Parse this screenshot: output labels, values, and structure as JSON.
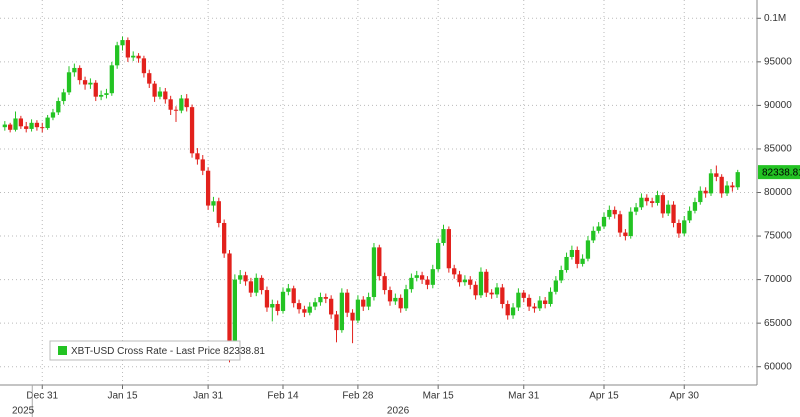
{
  "chart_data": {
    "type": "candlestick",
    "series": [
      {
        "name": "XBT-USD Cross Rate - Last Price",
        "up_color": "#23c323",
        "down_color": "#e2211c",
        "x": [
          -7,
          -6,
          -5,
          -4,
          -3,
          -2,
          -1,
          0,
          1,
          2,
          3,
          4,
          5,
          6,
          7,
          8,
          9,
          10,
          11,
          12,
          13,
          14,
          15,
          16,
          17,
          18,
          19,
          20,
          21,
          22,
          23,
          24,
          25,
          26,
          27,
          28,
          29,
          30,
          31,
          32,
          33,
          34,
          35,
          36,
          37,
          38,
          39,
          40,
          41,
          42,
          43,
          44,
          45,
          46,
          47,
          48,
          49,
          50,
          51,
          52,
          53,
          54,
          55,
          56,
          57,
          58,
          59,
          60,
          61,
          62,
          63,
          64,
          65,
          66,
          67,
          68,
          69,
          70,
          71,
          72,
          73,
          74,
          75,
          76,
          77,
          78,
          79,
          80,
          81,
          82,
          83,
          84,
          85,
          86,
          87,
          88,
          89,
          90,
          91,
          92,
          93,
          94,
          95,
          96,
          97,
          98,
          99,
          100,
          101,
          102,
          103,
          104,
          105,
          106,
          107,
          108,
          109,
          110,
          111,
          112,
          113,
          114,
          115,
          116,
          117,
          118,
          119,
          120,
          121,
          122,
          123,
          124,
          125,
          126,
          127,
          128,
          129,
          130
        ],
        "candles": [
          [
            87500,
            88200,
            87100,
            87800
          ],
          [
            87800,
            88000,
            86900,
            87200
          ],
          [
            87200,
            89300,
            87000,
            88500
          ],
          [
            88500,
            88800,
            87300,
            87600
          ],
          [
            87600,
            88100,
            86900,
            87300
          ],
          [
            87300,
            88400,
            87000,
            88000
          ],
          [
            88000,
            88300,
            87100,
            87500
          ],
          [
            87500,
            88000,
            86900,
            87400
          ],
          [
            87400,
            88900,
            87200,
            88600
          ],
          [
            88600,
            89600,
            88300,
            89200
          ],
          [
            89200,
            90900,
            88900,
            90500
          ],
          [
            90500,
            91900,
            90100,
            91500
          ],
          [
            91500,
            94500,
            91200,
            93800
          ],
          [
            93800,
            94800,
            93300,
            94300
          ],
          [
            94300,
            94600,
            92400,
            92900
          ],
          [
            92900,
            93300,
            91800,
            92400
          ],
          [
            92400,
            93100,
            91900,
            92600
          ],
          [
            92600,
            92900,
            90500,
            91000
          ],
          [
            91000,
            91700,
            90600,
            91200
          ],
          [
            91200,
            91900,
            90800,
            91400
          ],
          [
            91400,
            95000,
            91100,
            94600
          ],
          [
            94600,
            97300,
            94200,
            96900
          ],
          [
            96900,
            97900,
            96300,
            97500
          ],
          [
            97500,
            97800,
            95000,
            95500
          ],
          [
            95500,
            96200,
            95100,
            95700
          ],
          [
            95700,
            96000,
            94900,
            95400
          ],
          [
            95400,
            95700,
            93200,
            93700
          ],
          [
            93700,
            94100,
            92000,
            92500
          ],
          [
            92500,
            92800,
            90400,
            91000
          ],
          [
            91000,
            92100,
            90700,
            91600
          ],
          [
            91600,
            92000,
            90200,
            90700
          ],
          [
            90700,
            91100,
            88900,
            89500
          ],
          [
            89500,
            89900,
            88100,
            89400
          ],
          [
            89400,
            91200,
            89100,
            90800
          ],
          [
            90800,
            91300,
            89300,
            89800
          ],
          [
            89800,
            90100,
            84000,
            84500
          ],
          [
            84500,
            85100,
            83200,
            83800
          ],
          [
            83800,
            84300,
            82000,
            82500
          ],
          [
            82500,
            82900,
            78000,
            78500
          ],
          [
            78500,
            79500,
            77800,
            79000
          ],
          [
            79000,
            79400,
            76000,
            76500
          ],
          [
            76500,
            76900,
            72500,
            73000
          ],
          [
            73000,
            73400,
            60500,
            62500
          ],
          [
            62500,
            70600,
            62200,
            70000
          ],
          [
            70000,
            71100,
            69500,
            70500
          ],
          [
            70500,
            70900,
            69300,
            69800
          ],
          [
            69800,
            70200,
            68000,
            68500
          ],
          [
            68500,
            70700,
            68100,
            70200
          ],
          [
            70200,
            70500,
            68300,
            68800
          ],
          [
            68800,
            69200,
            66300,
            66800
          ],
          [
            66800,
            67700,
            65200,
            67200
          ],
          [
            67200,
            67600,
            65900,
            66400
          ],
          [
            66400,
            69100,
            66100,
            68600
          ],
          [
            68600,
            69500,
            68200,
            69000
          ],
          [
            69000,
            69300,
            66800,
            67300
          ],
          [
            67300,
            67700,
            66100,
            66600
          ],
          [
            66600,
            67000,
            65700,
            66200
          ],
          [
            66200,
            67400,
            65900,
            66900
          ],
          [
            66900,
            67900,
            66500,
            67400
          ],
          [
            67400,
            68500,
            67000,
            68000
          ],
          [
            68000,
            68400,
            67300,
            67800
          ],
          [
            67800,
            68200,
            65500,
            66000
          ],
          [
            66000,
            66400,
            62800,
            64200
          ],
          [
            64200,
            69000,
            63900,
            68500
          ],
          [
            68500,
            68900,
            65700,
            66200
          ],
          [
            66200,
            66600,
            62700,
            65300
          ],
          [
            65300,
            68200,
            65000,
            67700
          ],
          [
            67700,
            68100,
            66400,
            66900
          ],
          [
            66900,
            68500,
            66500,
            68000
          ],
          [
            68000,
            74200,
            67600,
            73700
          ],
          [
            73700,
            74000,
            69900,
            70400
          ],
          [
            70400,
            70800,
            68300,
            68800
          ],
          [
            68800,
            69200,
            67000,
            67500
          ],
          [
            67500,
            68400,
            67100,
            67900
          ],
          [
            67900,
            68300,
            66200,
            66700
          ],
          [
            66700,
            69400,
            66400,
            68900
          ],
          [
            68900,
            70700,
            68500,
            70200
          ],
          [
            70200,
            71000,
            69800,
            70500
          ],
          [
            70500,
            70900,
            69500,
            70000
          ],
          [
            70000,
            70400,
            68900,
            69400
          ],
          [
            69400,
            71700,
            69000,
            71200
          ],
          [
            71200,
            74700,
            70900,
            74200
          ],
          [
            74200,
            76300,
            73900,
            75800
          ],
          [
            75800,
            76100,
            70800,
            71300
          ],
          [
            71300,
            71700,
            70100,
            70600
          ],
          [
            70600,
            71000,
            69200,
            69700
          ],
          [
            69700,
            70500,
            69300,
            70000
          ],
          [
            70000,
            70400,
            68900,
            69400
          ],
          [
            69400,
            69800,
            67700,
            68200
          ],
          [
            68200,
            71400,
            67900,
            70900
          ],
          [
            70900,
            71200,
            68000,
            68500
          ],
          [
            68500,
            68900,
            67800,
            68300
          ],
          [
            68300,
            69600,
            67900,
            69100
          ],
          [
            69100,
            69500,
            66700,
            67200
          ],
          [
            67200,
            67600,
            65400,
            65900
          ],
          [
            65900,
            67300,
            65500,
            66800
          ],
          [
            66800,
            69000,
            66400,
            68500
          ],
          [
            68500,
            68800,
            67400,
            67900
          ],
          [
            67900,
            68300,
            66400,
            66900
          ],
          [
            66900,
            67300,
            66200,
            66700
          ],
          [
            66700,
            68100,
            66400,
            67600
          ],
          [
            67600,
            68000,
            66700,
            67200
          ],
          [
            67200,
            69100,
            66900,
            68600
          ],
          [
            68600,
            70400,
            68300,
            69900
          ],
          [
            69900,
            71600,
            69600,
            71100
          ],
          [
            71100,
            73100,
            70800,
            72600
          ],
          [
            72600,
            73900,
            72300,
            73400
          ],
          [
            73400,
            73800,
            71300,
            71800
          ],
          [
            71800,
            72900,
            71500,
            72400
          ],
          [
            72400,
            75000,
            72100,
            74500
          ],
          [
            74500,
            76100,
            74200,
            75600
          ],
          [
            75600,
            76600,
            75300,
            76100
          ],
          [
            76100,
            77700,
            75800,
            77200
          ],
          [
            77200,
            78500,
            76900,
            78000
          ],
          [
            78000,
            78400,
            77000,
            77500
          ],
          [
            77500,
            77900,
            74900,
            75400
          ],
          [
            75400,
            75800,
            74500,
            75000
          ],
          [
            75000,
            78300,
            74700,
            77800
          ],
          [
            77800,
            78800,
            77400,
            78300
          ],
          [
            78300,
            79900,
            78000,
            79400
          ],
          [
            79400,
            79800,
            78500,
            79000
          ],
          [
            79000,
            79400,
            78300,
            78800
          ],
          [
            78800,
            80200,
            78500,
            79700
          ],
          [
            79700,
            80000,
            77100,
            77600
          ],
          [
            77600,
            79100,
            77300,
            78600
          ],
          [
            78600,
            79000,
            76000,
            76500
          ],
          [
            76500,
            76900,
            74800,
            75300
          ],
          [
            75300,
            77300,
            75000,
            76800
          ],
          [
            76800,
            78400,
            76500,
            77900
          ],
          [
            77900,
            79400,
            77600,
            78900
          ],
          [
            78900,
            80700,
            78600,
            80200
          ],
          [
            80200,
            80600,
            79400,
            79900
          ],
          [
            79900,
            82700,
            79600,
            82200
          ],
          [
            82200,
            83100,
            81300,
            81800
          ],
          [
            81800,
            82100,
            79400,
            79900
          ],
          [
            79900,
            81300,
            79600,
            80800
          ],
          [
            80800,
            81200,
            80100,
            80600
          ],
          [
            80600,
            82600,
            80300,
            82338.81
          ]
        ]
      }
    ],
    "xlim": [
      -7.9,
      133.6
    ],
    "xticks": [
      {
        "value": 0,
        "label": "Dec 31"
      },
      {
        "value": 15,
        "label": "Jan 15"
      },
      {
        "value": 31,
        "label": "Jan 31"
      },
      {
        "value": 45,
        "label": "Feb 14"
      },
      {
        "value": 59,
        "label": "Feb 28"
      },
      {
        "value": 74,
        "label": "Mar 15"
      },
      {
        "value": 90,
        "label": "Mar 31"
      },
      {
        "value": 105,
        "label": "Apr 15"
      },
      {
        "value": 120,
        "label": "Apr 30"
      }
    ],
    "year_labels": [
      "2025",
      "2026"
    ],
    "ylim": [
      57900,
      102100
    ],
    "yticks": [
      60000,
      65000,
      70000,
      75000,
      80000,
      85000,
      90000,
      95000,
      {
        "value": 100000,
        "label": "0.1M"
      }
    ],
    "grid": true
  }
}
